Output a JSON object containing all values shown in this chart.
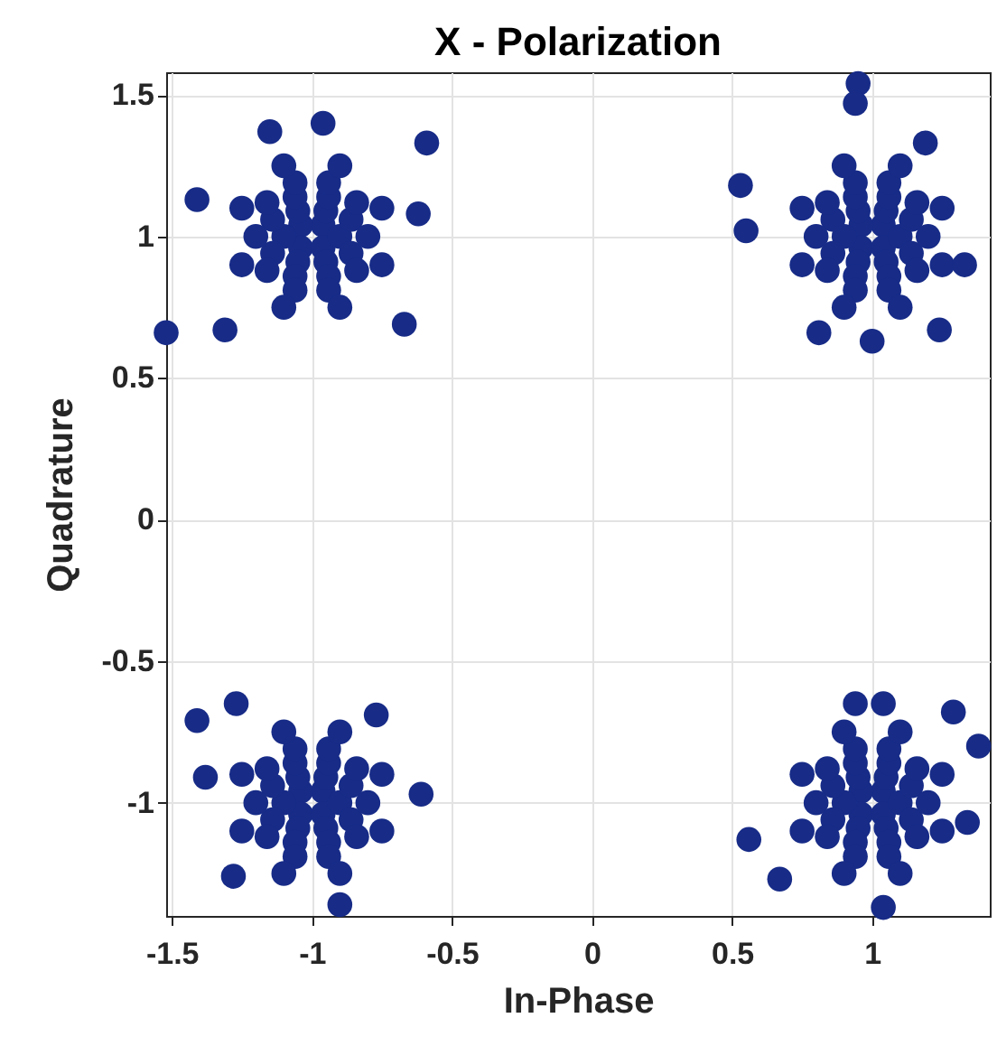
{
  "chart_data": {
    "type": "scatter",
    "title": "X - Polarization",
    "xlabel": "In-Phase",
    "ylabel": "Quadrature",
    "xlim": [
      -1.52,
      1.42
    ],
    "ylim": [
      -1.4,
      1.58
    ],
    "xticks": [
      -1.5,
      -1,
      -0.5,
      0,
      0.5,
      1
    ],
    "yticks": [
      -1,
      -0.5,
      0,
      0.5,
      1,
      1.5
    ],
    "grid": true,
    "marker": "circle",
    "series": [
      {
        "color": "#172b87",
        "x": [
          -0.96,
          -1.04,
          -1.04,
          -0.96,
          -0.9,
          -0.95,
          -1.05,
          -1.1,
          -1.05,
          -0.95,
          -0.86,
          -0.94,
          -1.06,
          -1.14,
          -1.14,
          -1.06,
          -0.94,
          -0.86,
          -0.8,
          -0.84,
          -0.94,
          -1.06,
          -1.16,
          -1.2,
          -1.16,
          -1.06,
          -0.94,
          -0.84,
          -0.75,
          -0.9,
          -1.1,
          -1.25,
          -1.25,
          -1.1,
          -0.9,
          -0.75,
          -1.52,
          -1.31,
          -1.41,
          -0.59,
          -0.96,
          -0.67,
          -0.62,
          -1.15
        ],
        "values": [
          1.04,
          1.04,
          0.96,
          0.96,
          1,
          1.09,
          1.09,
          1,
          0.91,
          0.91,
          1.06,
          1.14,
          1.14,
          1.06,
          0.94,
          0.86,
          0.86,
          0.94,
          1,
          1.12,
          1.19,
          1.19,
          1.12,
          1,
          0.88,
          0.81,
          0.81,
          0.88,
          1.1,
          1.25,
          1.25,
          1.1,
          0.9,
          0.75,
          0.75,
          0.9,
          0.66,
          0.67,
          1.13,
          1.33,
          1.4,
          0.69,
          1.08,
          1.37
        ]
      },
      {
        "color": "#172b87",
        "x": [
          1.04,
          0.96,
          0.96,
          1.04,
          1.1,
          1.05,
          0.95,
          0.9,
          0.95,
          1.05,
          1.14,
          1.06,
          0.94,
          0.86,
          0.86,
          0.94,
          1.06,
          1.14,
          1.2,
          1.16,
          1.06,
          0.94,
          0.84,
          0.8,
          0.84,
          0.94,
          1.06,
          1.16,
          1.25,
          1.1,
          0.9,
          0.75,
          0.75,
          0.9,
          1.1,
          1.25,
          0.95,
          0.94,
          0.53,
          0.55,
          1,
          0.81,
          1.24,
          1.33,
          1.19
        ],
        "values": [
          1.04,
          1.04,
          0.96,
          0.96,
          1,
          1.09,
          1.09,
          1,
          0.91,
          0.91,
          1.06,
          1.14,
          1.14,
          1.06,
          0.94,
          0.86,
          0.86,
          0.94,
          1,
          1.12,
          1.19,
          1.19,
          1.12,
          1,
          0.88,
          0.81,
          0.81,
          0.88,
          1.1,
          1.25,
          1.25,
          1.1,
          0.9,
          0.75,
          0.75,
          0.9,
          1.54,
          1.47,
          1.18,
          1.02,
          0.63,
          0.66,
          0.67,
          0.9,
          1.33
        ]
      },
      {
        "color": "#172b87",
        "x": [
          -0.96,
          -1.04,
          -1.04,
          -0.96,
          -0.9,
          -0.95,
          -1.05,
          -1.1,
          -1.05,
          -0.95,
          -0.86,
          -0.94,
          -1.06,
          -1.14,
          -1.14,
          -1.06,
          -0.94,
          -0.86,
          -0.8,
          -0.84,
          -0.94,
          -1.06,
          -1.16,
          -1.2,
          -1.16,
          -1.06,
          -0.94,
          -0.84,
          -0.75,
          -0.9,
          -1.1,
          -1.25,
          -1.25,
          -1.1,
          -0.9,
          -0.75,
          -1.41,
          -1.27,
          -0.77,
          -0.61,
          -0.9,
          -1.28,
          -1.38
        ],
        "values": [
          -0.96,
          -0.96,
          -1.04,
          -1.04,
          -1,
          -0.91,
          -0.91,
          -1,
          -1.09,
          -1.09,
          -0.94,
          -0.86,
          -0.86,
          -0.94,
          -1.06,
          -1.14,
          -1.14,
          -1.06,
          -1,
          -0.88,
          -0.81,
          -0.81,
          -0.88,
          -1,
          -1.12,
          -1.19,
          -1.19,
          -1.12,
          -0.9,
          -0.75,
          -0.75,
          -0.9,
          -1.1,
          -1.25,
          -1.25,
          -1.1,
          -0.71,
          -0.65,
          -0.69,
          -0.97,
          -1.36,
          -1.26,
          -0.91
        ]
      },
      {
        "color": "#172b87",
        "x": [
          1.04,
          0.96,
          0.96,
          1.04,
          1.1,
          1.05,
          0.95,
          0.9,
          0.95,
          1.05,
          1.14,
          1.06,
          0.94,
          0.86,
          0.86,
          0.94,
          1.06,
          1.14,
          1.2,
          1.16,
          1.06,
          0.94,
          0.84,
          0.8,
          0.84,
          0.94,
          1.06,
          1.16,
          1.25,
          1.1,
          0.9,
          0.75,
          0.75,
          0.9,
          1.1,
          1.25,
          0.56,
          1.04,
          0.94,
          1.38,
          1.04,
          1.29,
          0.67,
          1.34
        ],
        "values": [
          -0.96,
          -0.96,
          -1.04,
          -1.04,
          -1,
          -0.91,
          -0.91,
          -1,
          -1.09,
          -1.09,
          -0.94,
          -0.86,
          -0.86,
          -0.94,
          -1.06,
          -1.14,
          -1.14,
          -1.06,
          -1,
          -0.88,
          -0.81,
          -0.81,
          -0.88,
          -1,
          -1.12,
          -1.19,
          -1.19,
          -1.12,
          -0.9,
          -0.75,
          -0.75,
          -0.9,
          -1.1,
          -1.25,
          -1.25,
          -1.1,
          -1.13,
          -0.65,
          -0.65,
          -0.8,
          -1.37,
          -0.68,
          -1.27,
          -1.07
        ]
      }
    ]
  }
}
